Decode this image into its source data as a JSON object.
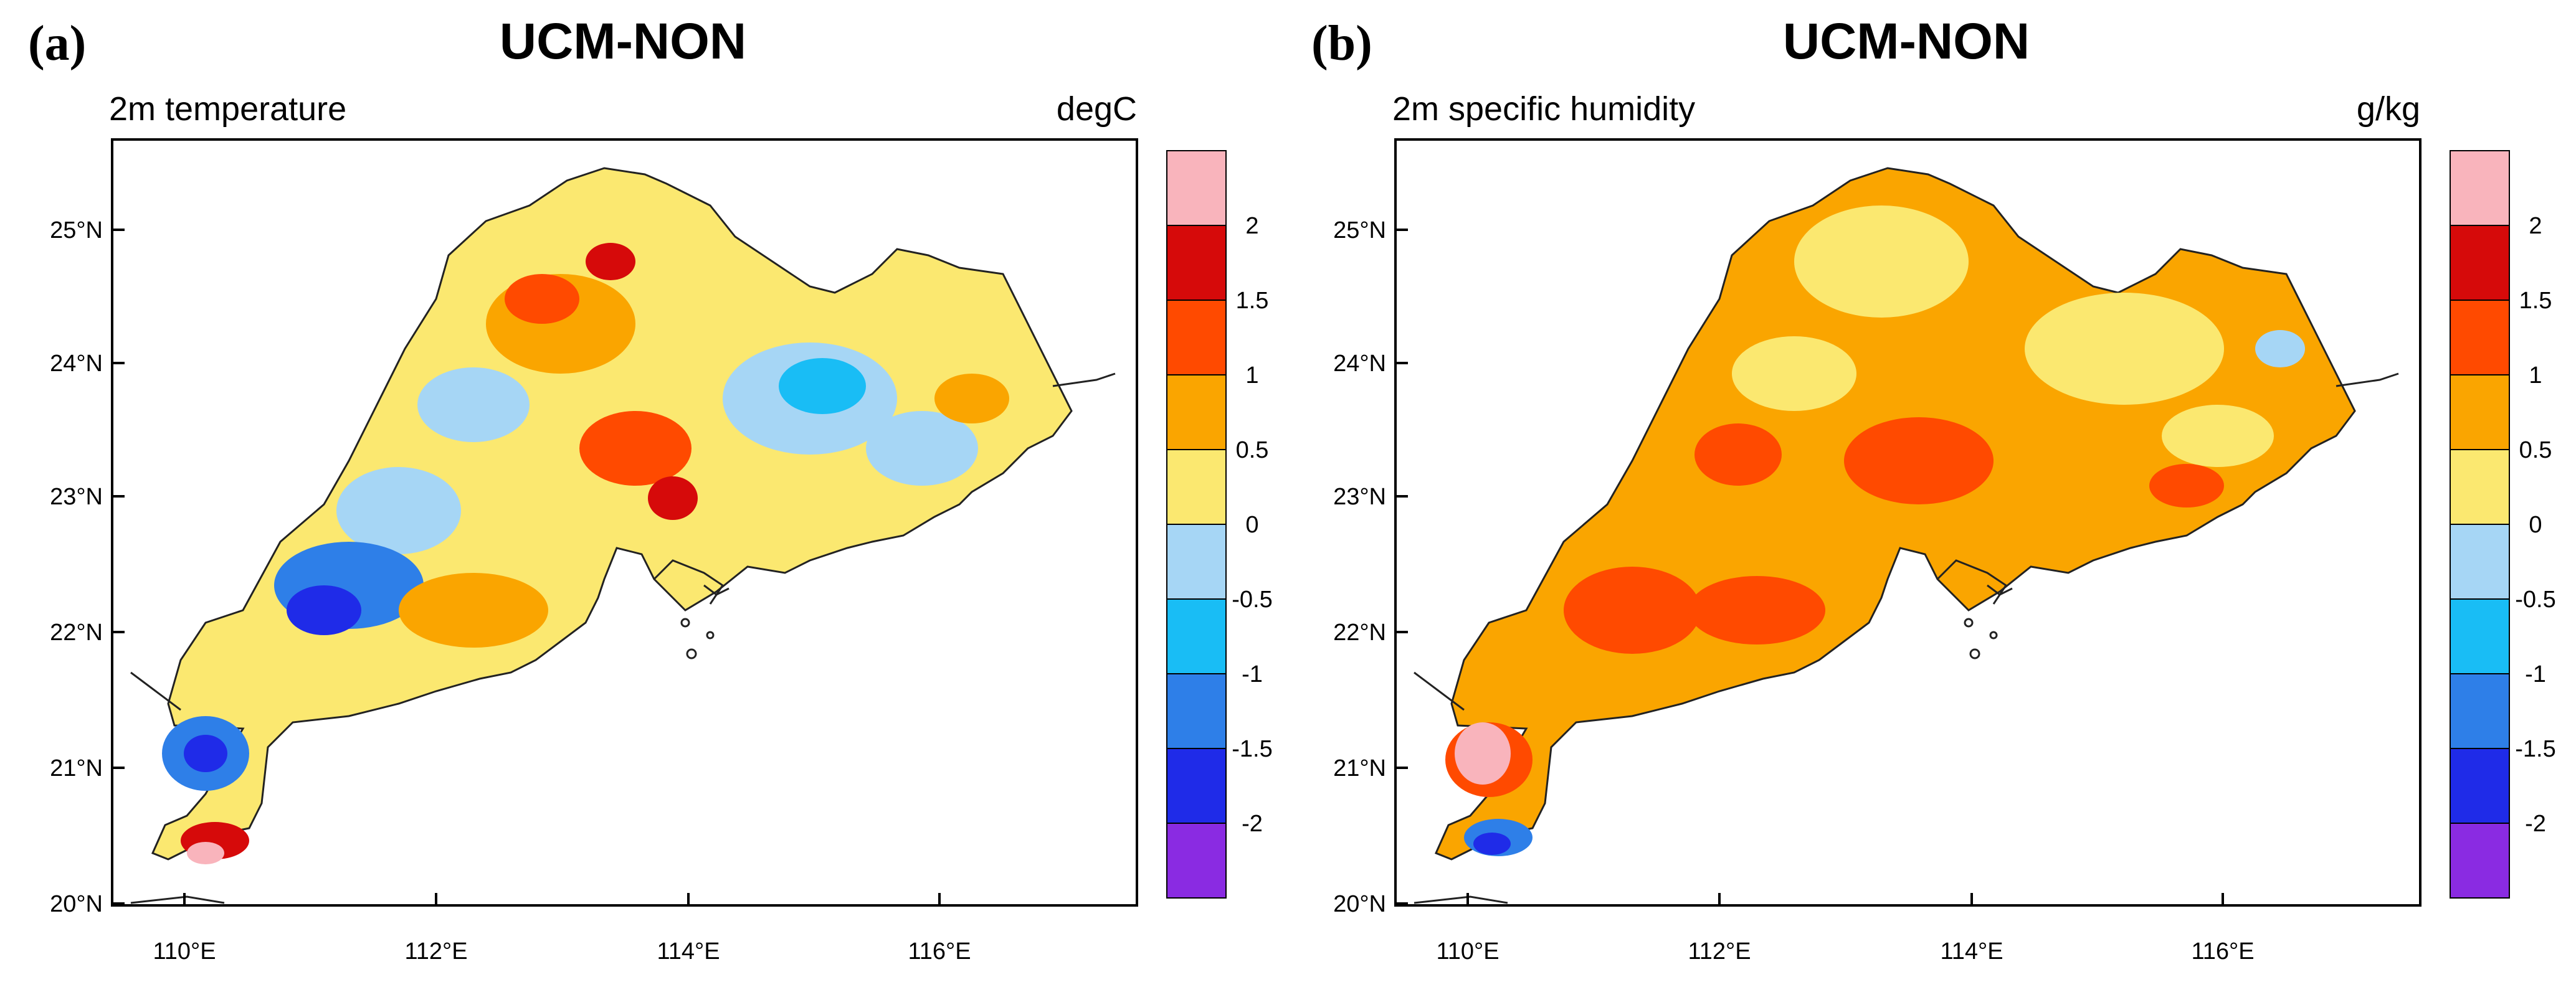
{
  "colorbar_colors": [
    "#8a2be2",
    "#1f2be8",
    "#2e7fe8",
    "#19bdf5",
    "#a6d6f5",
    "#fbe870",
    "#faa500",
    "#ff4a00",
    "#d60a0a",
    "#f9b4bc"
  ],
  "panels": [
    {
      "letter": "(a)",
      "title": "UCM-NON",
      "variable": "2m temperature",
      "units": "degC",
      "colorbar_ticks": [
        "-2",
        "-1.5",
        "-1",
        "-0.5",
        "0",
        "0.5",
        "1",
        "1.5",
        "2"
      ],
      "lat_labels": [
        "20°N",
        "21°N",
        "22°N",
        "23°N",
        "24°N",
        "25°N"
      ],
      "lon_labels": [
        "110°E",
        "112°E",
        "114°E",
        "116°E"
      ]
    },
    {
      "letter": "(b)",
      "title": "UCM-NON",
      "variable": "2m specific humidity",
      "units": "g/kg",
      "colorbar_ticks": [
        "-2",
        "-1.5",
        "-1",
        "-0.5",
        "0",
        "0.5",
        "1",
        "1.5",
        "2"
      ],
      "lat_labels": [
        "20°N",
        "21°N",
        "22°N",
        "23°N",
        "24°N",
        "25°N"
      ],
      "lon_labels": [
        "110°E",
        "112°E",
        "114°E",
        "116°E"
      ]
    }
  ]
}
